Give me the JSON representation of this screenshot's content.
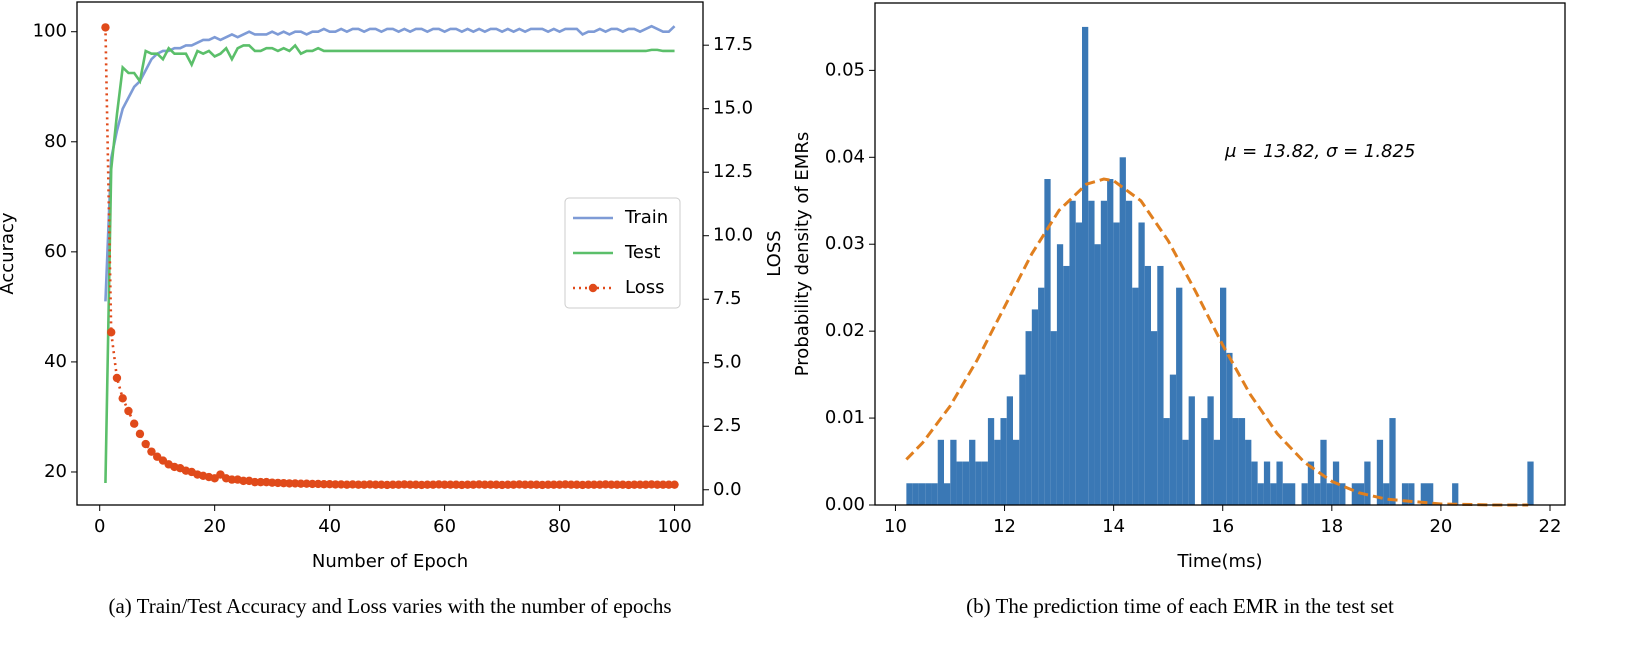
{
  "chart_data": [
    {
      "type": "line",
      "caption": "(a)  Train/Test Accuracy and Loss varies with the number of epochs",
      "xlabel": "Number of Epoch",
      "ylabel": "Accuracy",
      "y2label": "LOSS",
      "xlim": [
        -3.95,
        104.95
      ],
      "xticks": [
        0,
        20,
        40,
        60,
        80,
        100
      ],
      "ylim": [
        14,
        105.4
      ],
      "yticks": [
        20,
        40,
        60,
        80,
        100
      ],
      "y2lim": [
        -0.6,
        19.2
      ],
      "y2ticks": [
        {
          "value": 0,
          "label": "0.0"
        },
        {
          "value": 2.5,
          "label": "2.5"
        },
        {
          "value": 5,
          "label": "5.0"
        },
        {
          "value": 7.5,
          "label": "7.5"
        },
        {
          "value": 10,
          "label": "10.0"
        },
        {
          "value": 12.5,
          "label": "12.5"
        },
        {
          "value": 15,
          "label": "15.0"
        },
        {
          "value": 17.5,
          "label": "17.5"
        }
      ],
      "legend": "center right",
      "x": [
        1,
        2,
        3,
        4,
        5,
        6,
        7,
        8,
        9,
        10,
        11,
        12,
        13,
        14,
        15,
        16,
        17,
        18,
        19,
        20,
        21,
        22,
        23,
        24,
        25,
        26,
        27,
        28,
        29,
        30,
        31,
        32,
        33,
        34,
        35,
        36,
        37,
        38,
        39,
        40,
        41,
        42,
        43,
        44,
        45,
        46,
        47,
        48,
        49,
        50,
        51,
        52,
        53,
        54,
        55,
        56,
        57,
        58,
        59,
        60,
        61,
        62,
        63,
        64,
        65,
        66,
        67,
        68,
        69,
        70,
        71,
        72,
        73,
        74,
        75,
        76,
        77,
        78,
        79,
        80,
        81,
        82,
        83,
        84,
        85,
        86,
        87,
        88,
        89,
        90,
        91,
        92,
        93,
        94,
        95,
        96,
        97,
        98,
        99,
        100
      ],
      "series": [
        {
          "name": "Train",
          "color": "#7e9bd6",
          "values": [
            51,
            77,
            82,
            86,
            88,
            90,
            91,
            93,
            95,
            96,
            96.5,
            96.5,
            97,
            97,
            97.5,
            97.5,
            98,
            98.5,
            98.5,
            99,
            98.5,
            99,
            99.5,
            99,
            99.5,
            100,
            99.5,
            99.5,
            99.5,
            100,
            99.5,
            100,
            99.5,
            100,
            100,
            99.5,
            100,
            100,
            100.5,
            100,
            100,
            100.5,
            100,
            100.5,
            100.5,
            100,
            100.5,
            100.5,
            100,
            100.5,
            100.5,
            100,
            100.5,
            100,
            100.5,
            100.5,
            100,
            100.5,
            100.5,
            100,
            100.5,
            100.5,
            100,
            100.5,
            100,
            100.5,
            100,
            100.5,
            100.5,
            100,
            100.5,
            100,
            100.5,
            100,
            100.5,
            100.5,
            100.5,
            100,
            100.5,
            100,
            100.5,
            100.5,
            100.5,
            99.5,
            100,
            100,
            100.5,
            100,
            100.5,
            100.5,
            100,
            100.5,
            100.5,
            100,
            100.5,
            101,
            100.5,
            100,
            100,
            101
          ]
        },
        {
          "name": "Test",
          "color": "#5bbf6a",
          "values": [
            18,
            75,
            85,
            93.5,
            92.5,
            92.5,
            91,
            96.5,
            96,
            96,
            95,
            97,
            96,
            96,
            96,
            94,
            96.5,
            96,
            96.5,
            95.5,
            96,
            97,
            95,
            97,
            97.5,
            97.5,
            96.5,
            96.5,
            97,
            97,
            96.5,
            97,
            96.5,
            97.5,
            96,
            96.5,
            96.5,
            97,
            96.5,
            96.5,
            96.5,
            96.5,
            96.5,
            96.5,
            96.5,
            96.5,
            96.5,
            96.5,
            96.5,
            96.5,
            96.5,
            96.5,
            96.5,
            96.5,
            96.5,
            96.5,
            96.5,
            96.5,
            96.5,
            96.5,
            96.5,
            96.5,
            96.5,
            96.5,
            96.5,
            96.5,
            96.5,
            96.5,
            96.5,
            96.5,
            96.5,
            96.5,
            96.5,
            96.5,
            96.5,
            96.5,
            96.5,
            96.5,
            96.5,
            96.5,
            96.5,
            96.5,
            96.5,
            96.5,
            96.5,
            96.5,
            96.5,
            96.5,
            96.5,
            96.5,
            96.5,
            96.5,
            96.5,
            96.5,
            96.5,
            96.7,
            96.7,
            96.5,
            96.5,
            96.5
          ]
        },
        {
          "name": "Loss",
          "color": "#e04a1a",
          "axis": "y2",
          "marker": "circle",
          "linestyle": "dotted",
          "values": [
            18.2,
            6.2,
            4.4,
            3.6,
            3.1,
            2.6,
            2.2,
            1.8,
            1.5,
            1.3,
            1.15,
            1,
            0.9,
            0.85,
            0.75,
            0.7,
            0.6,
            0.55,
            0.5,
            0.45,
            0.6,
            0.45,
            0.4,
            0.4,
            0.35,
            0.35,
            0.3,
            0.3,
            0.3,
            0.28,
            0.27,
            0.26,
            0.25,
            0.25,
            0.24,
            0.24,
            0.23,
            0.23,
            0.22,
            0.22,
            0.21,
            0.21,
            0.2,
            0.21,
            0.2,
            0.2,
            0.21,
            0.2,
            0.2,
            0.19,
            0.2,
            0.2,
            0.21,
            0.2,
            0.2,
            0.19,
            0.2,
            0.2,
            0.21,
            0.2,
            0.2,
            0.2,
            0.19,
            0.2,
            0.2,
            0.21,
            0.2,
            0.2,
            0.2,
            0.19,
            0.2,
            0.2,
            0.21,
            0.2,
            0.2,
            0.2,
            0.19,
            0.2,
            0.2,
            0.2,
            0.21,
            0.2,
            0.2,
            0.19,
            0.2,
            0.2,
            0.2,
            0.21,
            0.2,
            0.2,
            0.2,
            0.19,
            0.2,
            0.2,
            0.2,
            0.21,
            0.2,
            0.2,
            0.2,
            0.2
          ]
        }
      ]
    },
    {
      "type": "histogram",
      "caption": "(b)  The prediction time of each EMR in the test set",
      "xlabel": "Time(ms)",
      "ylabel": "Probability density of EMRs",
      "annotation": "μ = 13.82,  σ = 1.825",
      "xlim": [
        9.625,
        22.275
      ],
      "xticks": [
        10,
        12,
        14,
        16,
        18,
        20,
        22
      ],
      "ylim": [
        0,
        0.05775
      ],
      "yticks": [
        {
          "value": 0,
          "label": "0.00"
        },
        {
          "value": 0.01,
          "label": "0.01"
        },
        {
          "value": 0.02,
          "label": "0.02"
        },
        {
          "value": 0.03,
          "label": "0.03"
        },
        {
          "value": 0.04,
          "label": "0.04"
        },
        {
          "value": 0.05,
          "label": "0.05"
        }
      ],
      "color": "#3a78b5",
      "bins": [
        10.2,
        10.315,
        10.43,
        10.545,
        10.66,
        10.775,
        10.89,
        11.005,
        11.12,
        11.235,
        11.35,
        11.465,
        11.58,
        11.695,
        11.81,
        11.925,
        12.04,
        12.155,
        12.27,
        12.385,
        12.5,
        12.615,
        12.73,
        12.845,
        12.96,
        13.075,
        13.19,
        13.305,
        13.42,
        13.535,
        13.65,
        13.765,
        13.88,
        13.995,
        14.11,
        14.225,
        14.34,
        14.455,
        14.57,
        14.685,
        14.8,
        14.915,
        15.03,
        15.145,
        15.26,
        15.375,
        15.49,
        15.605,
        15.72,
        15.835,
        15.95,
        16.065,
        16.18,
        16.295,
        16.41,
        16.525,
        16.64,
        16.755,
        16.87,
        16.985,
        17.1,
        17.215,
        17.33,
        17.445,
        17.56,
        17.675,
        17.79,
        17.905,
        18.02,
        18.135,
        18.25,
        18.365,
        18.48,
        18.595,
        18.71,
        18.825,
        18.94,
        19.055,
        19.17,
        19.285,
        19.4,
        19.515,
        19.63,
        19.745,
        19.86,
        19.975,
        20.09,
        20.205,
        20.32,
        20.435,
        20.55,
        20.665,
        20.78,
        20.895,
        21.01,
        21.125,
        21.24,
        21.355,
        21.47,
        21.585,
        21.7
      ],
      "values": [
        0.0025,
        0.0025,
        0.0025,
        0.0025,
        0.0025,
        0.0075,
        0.0025,
        0.0075,
        0.005,
        0.005,
        0.0075,
        0.005,
        0.005,
        0.01,
        0.0075,
        0.01,
        0.0125,
        0.0075,
        0.015,
        0.02,
        0.0225,
        0.025,
        0.0375,
        0.02,
        0.03,
        0.0275,
        0.035,
        0.0325,
        0.055,
        0.035,
        0.03,
        0.035,
        0.0375,
        0.0325,
        0.04,
        0.035,
        0.025,
        0.0325,
        0.0275,
        0.02,
        0.0275,
        0.01,
        0.015,
        0.025,
        0.0075,
        0.0125,
        0,
        0.01,
        0.0125,
        0.0075,
        0.025,
        0.0175,
        0.01,
        0.01,
        0.0075,
        0.005,
        0.0025,
        0.005,
        0.0025,
        0.005,
        0.0025,
        0.0025,
        0,
        0.0025,
        0.005,
        0.0025,
        0.0075,
        0.0025,
        0.005,
        0.0025,
        0,
        0.0025,
        0.0025,
        0.005,
        0,
        0.0075,
        0.0025,
        0.01,
        0,
        0.0025,
        0.0025,
        0,
        0.0025,
        0.0025,
        0,
        0,
        0,
        0.0025,
        0,
        0,
        0,
        0,
        0,
        0,
        0,
        0,
        0,
        0,
        0,
        0.005
      ],
      "curve": {
        "color": "#e07f1f",
        "linestyle": "dashed",
        "x": [
          10.2,
          10.5,
          11,
          11.5,
          12,
          12.5,
          13,
          13.5,
          13.82,
          14,
          14.5,
          15,
          15.5,
          16,
          16.5,
          17,
          17.5,
          18,
          18.5,
          19,
          20,
          21,
          21.6
        ],
        "values": [
          0.00524,
          0.00717,
          0.01136,
          0.0167,
          0.0228,
          0.0289,
          0.0339,
          0.0369,
          0.0375,
          0.0373,
          0.035,
          0.0304,
          0.0246,
          0.0184,
          0.01276,
          0.0082,
          0.0049,
          0.00272,
          0.0014,
          0.00067,
          0.00012,
          0,
          0
        ]
      }
    }
  ]
}
